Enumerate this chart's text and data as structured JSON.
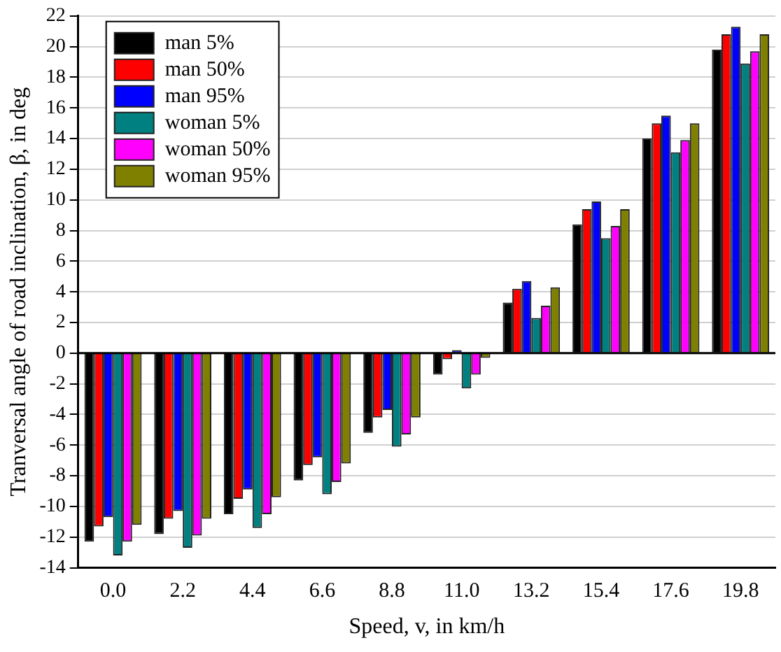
{
  "chart_data": {
    "type": "bar",
    "xlabel": "Speed, v, in km/h",
    "ylabel": "Tranversal angle of road inclination, β, in deg",
    "categories": [
      "0.0",
      "2.2",
      "4.4",
      "6.6",
      "8.8",
      "11.0",
      "13.2",
      "15.4",
      "17.6",
      "19.8"
    ],
    "series": [
      {
        "name": "man 5%",
        "color": "#000000",
        "values": [
          -12.3,
          -11.8,
          -10.5,
          -8.3,
          -5.2,
          -1.4,
          3.3,
          8.4,
          14.0,
          19.8
        ]
      },
      {
        "name": "man 50%",
        "color": "#ff0000",
        "values": [
          -11.3,
          -10.8,
          -9.5,
          -7.3,
          -4.2,
          -0.4,
          4.2,
          9.4,
          15.0,
          20.8
        ]
      },
      {
        "name": "man 95%",
        "color": "#0000ff",
        "values": [
          -10.7,
          -10.3,
          -8.9,
          -6.8,
          -3.7,
          0.2,
          4.7,
          9.9,
          15.5,
          21.3
        ]
      },
      {
        "name": "woman 5%",
        "color": "#008080",
        "values": [
          -13.2,
          -12.7,
          -11.4,
          -9.2,
          -6.1,
          -2.3,
          2.3,
          7.5,
          13.1,
          18.9
        ]
      },
      {
        "name": "woman 50%",
        "color": "#ff00ff",
        "values": [
          -12.3,
          -11.9,
          -10.5,
          -8.4,
          -5.3,
          -1.4,
          3.1,
          8.3,
          13.9,
          19.7
        ]
      },
      {
        "name": "woman 95%",
        "color": "#808000",
        "values": [
          -11.2,
          -10.8,
          -9.4,
          -7.2,
          -4.2,
          -0.3,
          4.3,
          9.4,
          15.0,
          20.8
        ]
      }
    ],
    "ylim": [
      -14,
      22
    ],
    "yticks": [
      -14,
      -12,
      -10,
      -8,
      -6,
      -4,
      -2,
      0,
      2,
      4,
      6,
      8,
      10,
      12,
      14,
      16,
      18,
      20,
      22
    ],
    "grid": "y",
    "legend": "top left"
  }
}
